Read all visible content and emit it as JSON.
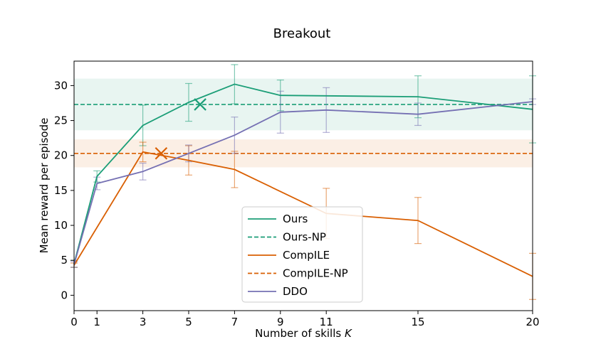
{
  "chart_data": {
    "type": "line",
    "title": "Breakout",
    "xlabel": "Number of skills",
    "xlabel_var": "K",
    "ylabel": "Mean reward per episode",
    "x_ticks": [
      0,
      1,
      3,
      5,
      7,
      9,
      11,
      15,
      20
    ],
    "y_ticks": [
      0,
      5,
      10,
      15,
      20,
      25,
      30
    ],
    "xlim": [
      0,
      20
    ],
    "ylim": [
      -2.2,
      33.5
    ],
    "grid": false,
    "legend_position": "lower-center",
    "series": [
      {
        "name": "Ours",
        "color": "#1b9e77",
        "style": "solid",
        "x": [
          0,
          1,
          3,
          5,
          7,
          9,
          15,
          20
        ],
        "y": [
          4.5,
          17.0,
          24.3,
          27.6,
          30.2,
          28.6,
          28.4,
          26.6
        ],
        "err": [
          0.5,
          0.8,
          2.9,
          2.7,
          2.8,
          2.2,
          3.0,
          4.8
        ]
      },
      {
        "name": "Ours-NP",
        "color": "#1b9e77",
        "style": "dashed",
        "hline": 27.3,
        "band": [
          23.6,
          31.0
        ],
        "marker": {
          "x": 5.5,
          "y": 27.3
        }
      },
      {
        "name": "CompILE",
        "color": "#d95f02",
        "style": "solid",
        "x": [
          0,
          3,
          5,
          7,
          11,
          15,
          20
        ],
        "y": [
          4.3,
          20.5,
          19.3,
          18.0,
          11.7,
          10.7,
          2.7
        ],
        "err": [
          0.3,
          1.4,
          2.1,
          2.6,
          3.6,
          3.3,
          3.3
        ]
      },
      {
        "name": "CompILE-NP",
        "color": "#d95f02",
        "style": "dashed",
        "hline": 20.3,
        "band": [
          18.3,
          22.3
        ],
        "marker": {
          "x": 3.8,
          "y": 20.3
        }
      },
      {
        "name": "DDO",
        "color": "#7570b3",
        "style": "solid",
        "x": [
          0,
          1,
          3,
          5,
          7,
          9,
          11,
          15,
          20
        ],
        "y": [
          4.4,
          16.0,
          17.7,
          20.3,
          22.9,
          26.2,
          26.5,
          25.9,
          27.7
        ],
        "err": [
          0.4,
          0.9,
          1.2,
          1.2,
          2.6,
          3.0,
          3.2,
          1.6,
          0.4
        ]
      }
    ]
  }
}
